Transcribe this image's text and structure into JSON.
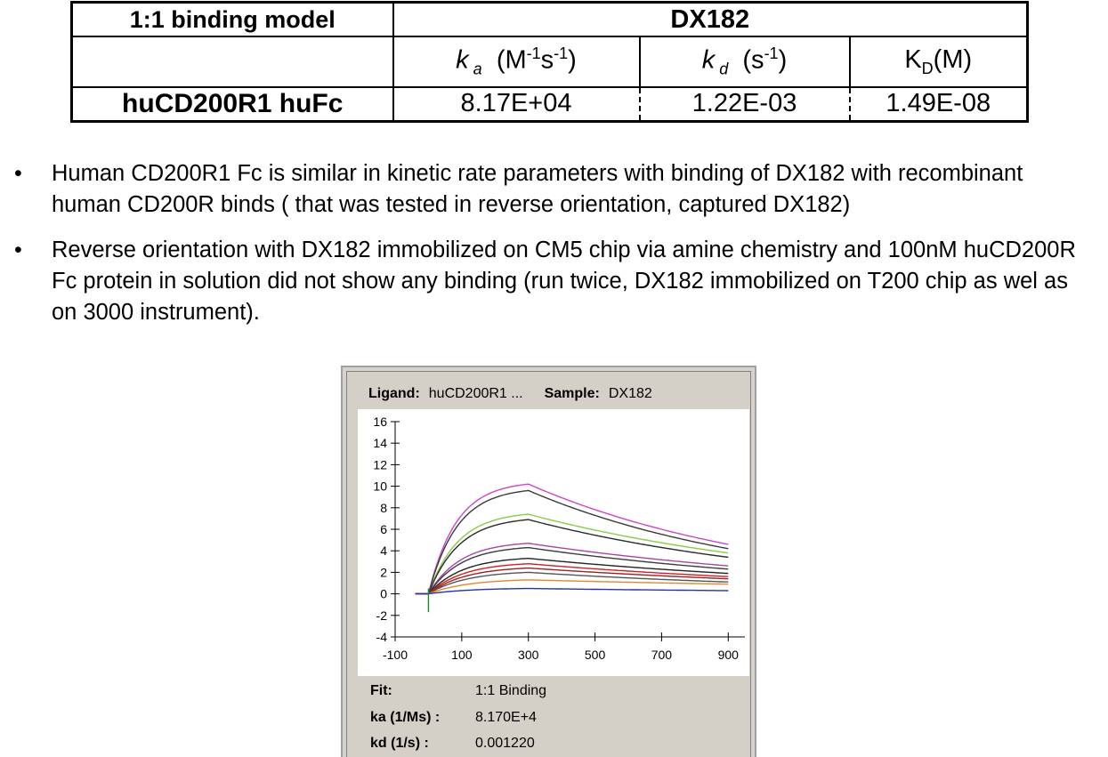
{
  "table": {
    "model_label": "1:1 binding model",
    "sample_label": "DX182",
    "headers": {
      "ka_letter": "k",
      "ka_sub": "a",
      "ka_units_pre": "(M",
      "ka_units_sup1": "-1",
      "ka_units_mid": "s",
      "ka_units_sup2": "-1",
      "ka_units_post": ")",
      "kd_letter": "k",
      "kd_sub": "d",
      "kd_units_pre": "(s",
      "kd_units_sup": "-1",
      "kd_units_post": ")",
      "KD_letter": "K",
      "KD_sub": "D",
      "KD_units": "(M)"
    },
    "row": {
      "name": "huCD200R1 huFc",
      "ka": "8.17E+04",
      "kd": "1.22E-03",
      "KD": "1.49E-08"
    }
  },
  "bullets": [
    "Human CD200R1 Fc  is similar in kinetic rate parameters with binding of DX182 with recombinant human CD200R binds ( that was tested in reverse orientation, captured DX182)",
    "Reverse orientation with DX182 immobilized on CM5 chip via amine chemistry and 100nM huCD200R Fc protein in solution  did not show any binding (run twice, DX182 immobilized on T200 chip as wel as on 3000 instrument)."
  ],
  "bullet_char": "•",
  "panel": {
    "ligand_label": "Ligand:",
    "ligand_value": "huCD200R1 ...",
    "sample_label": "Sample:",
    "sample_value": "DX182",
    "fit_label": "Fit:",
    "fit_value": "1:1 Binding",
    "ka_label": "ka (1/Ms) :",
    "ka_value": "8.170E+4",
    "kd_label": "kd (1/s) :",
    "kd_value": "0.001220"
  },
  "chart_data": {
    "type": "line",
    "title": "",
    "xlabel": "",
    "ylabel": "",
    "xlim": [
      -100,
      950
    ],
    "ylim": [
      -4,
      16
    ],
    "x_ticks": [
      -100,
      100,
      300,
      500,
      700,
      900
    ],
    "y_ticks": [
      -4,
      -2,
      0,
      2,
      4,
      6,
      8,
      10,
      12,
      14,
      16
    ],
    "grid": false,
    "injection_start": 0,
    "injection_end": 300,
    "run_end": 900,
    "series": [
      {
        "color": "#cc44cc",
        "plateau": 10.2,
        "end": 4.6
      },
      {
        "color": "#3a3a3a",
        "plateau": 9.6,
        "end": 4.2
      },
      {
        "color": "#88cc44",
        "plateau": 7.4,
        "end": 3.8
      },
      {
        "color": "#2a2a2a",
        "plateau": 6.9,
        "end": 3.4
      },
      {
        "color": "#aa44aa",
        "plateau": 4.7,
        "end": 2.6
      },
      {
        "color": "#3c3c3c",
        "plateau": 4.3,
        "end": 2.3
      },
      {
        "color": "#222222",
        "plateau": 3.3,
        "end": 1.9
      },
      {
        "color": "#cc2222",
        "plateau": 2.8,
        "end": 1.6
      },
      {
        "color": "#992222",
        "plateau": 2.4,
        "end": 1.4
      },
      {
        "color": "#555555",
        "plateau": 2.0,
        "end": 1.1
      },
      {
        "color": "#dd8833",
        "plateau": 1.3,
        "end": 0.9
      },
      {
        "color": "#2233aa",
        "plateau": 0.5,
        "end": 0.3
      }
    ]
  }
}
